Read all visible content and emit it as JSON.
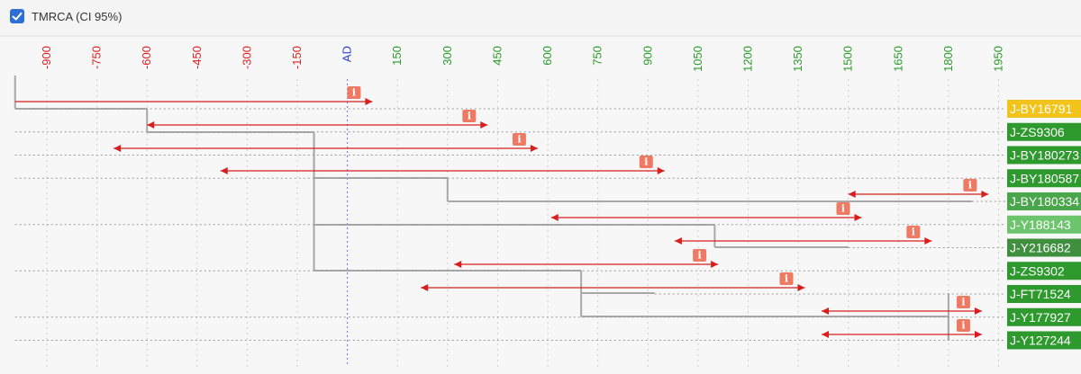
{
  "header": {
    "checkbox_label": "TMRCA (CI 95%)",
    "checked": true
  },
  "colors": {
    "negative_tick": "#e02020",
    "positive_tick": "#2a9a2a",
    "ad_tick": "#2f3fd0",
    "range": "#d81e1e",
    "branch": "#a8a8a8",
    "info_badge": "#ee7a63",
    "checkbox": "#2d6fd6"
  },
  "chart_data": {
    "type": "tree",
    "title": "TMRCA (CI 95%)",
    "xlabel": "",
    "ylabel": "",
    "x_range": [
      -1000,
      2000
    ],
    "ticks": [
      "-900",
      "-750",
      "-600",
      "-450",
      "-300",
      "-150",
      "AD",
      "150",
      "300",
      "450",
      "600",
      "750",
      "900",
      "1050",
      "1200",
      "1350",
      "1500",
      "1650",
      "1800",
      "1950"
    ],
    "tick_values": [
      -900,
      -750,
      -600,
      -450,
      -300,
      -150,
      0,
      150,
      300,
      450,
      600,
      750,
      900,
      1050,
      1200,
      1350,
      1500,
      1650,
      1800,
      1950
    ],
    "leaves": [
      {
        "name": "J-BY16791",
        "color": "#f2c31a",
        "text_color": "#222222",
        "branch_end": null
      },
      {
        "name": "J-ZS9306",
        "color": "#2e9a2e",
        "text_color": "#ffffff",
        "branch_end": null
      },
      {
        "name": "J-BY180273",
        "color": "#2e9a2e",
        "text_color": "#ffffff",
        "branch_end": null
      },
      {
        "name": "J-BY180587",
        "color": "#2e9a2e",
        "text_color": "#ffffff",
        "branch_end": null
      },
      {
        "name": "J-BY180334",
        "color": "#4aa64a",
        "text_color": "#ffffff",
        "branch_end": 1870
      },
      {
        "name": "J-Y188143",
        "color": "#6cc46c",
        "text_color": "#ffffff",
        "branch_end": null
      },
      {
        "name": "J-Y216682",
        "color": "#3f8f3f",
        "text_color": "#ffffff",
        "branch_end": 1500
      },
      {
        "name": "J-ZS9302",
        "color": "#2e9a2e",
        "text_color": "#ffffff",
        "branch_end": null
      },
      {
        "name": "J-FT71524",
        "color": "#2e9a2e",
        "text_color": "#ffffff",
        "branch_end": 920
      },
      {
        "name": "J-Y177927",
        "color": "#2e9a2e",
        "text_color": "#ffffff",
        "branch_end": null
      },
      {
        "name": "J-Y127244",
        "color": "#2e9a2e",
        "text_color": "#ffffff",
        "branch_end": null
      }
    ],
    "nodes": [
      {
        "id": "n0",
        "date": -995,
        "ci": [
          -995,
          75
        ],
        "children": [
          "J-BY16791",
          "n1"
        ]
      },
      {
        "id": "n1",
        "date": -600,
        "ci": [
          -600,
          420
        ],
        "children": [
          "J-ZS9306",
          "n2"
        ]
      },
      {
        "id": "n2",
        "date": -100,
        "ci": [
          -700,
          570
        ],
        "children": [
          "J-BY180273",
          "n3"
        ]
      },
      {
        "id": "n3",
        "date": -100,
        "ci": [
          -380,
          950
        ],
        "children": [
          "J-BY180587",
          "n4",
          "n5"
        ]
      },
      {
        "id": "n4",
        "date": 300,
        "ci": [
          1500,
          1920
        ],
        "children": [
          "J-BY180334"
        ]
      },
      {
        "id": "n5",
        "date": -100,
        "ci": [
          610,
          1540
        ],
        "children": [
          "n6",
          "n7"
        ]
      },
      {
        "id": "n6",
        "date": 1100,
        "ci": [
          980,
          1750
        ],
        "children": [
          "J-Y188143",
          "J-Y216682"
        ]
      },
      {
        "id": "n7",
        "date": -100,
        "ci": [
          320,
          1110
        ],
        "children": [
          "J-ZS9302",
          "n8"
        ]
      },
      {
        "id": "n8",
        "date": 700,
        "ci": [
          220,
          1370
        ],
        "children": [
          "J-FT71524",
          "n9"
        ]
      },
      {
        "id": "n9",
        "date": 1800,
        "ci": [
          1420,
          1900
        ],
        "children": [
          "J-Y177927",
          "n10"
        ]
      },
      {
        "id": "n10",
        "date": 1800,
        "ci": [
          1420,
          1900
        ],
        "children": [
          "J-Y127244"
        ]
      }
    ]
  }
}
